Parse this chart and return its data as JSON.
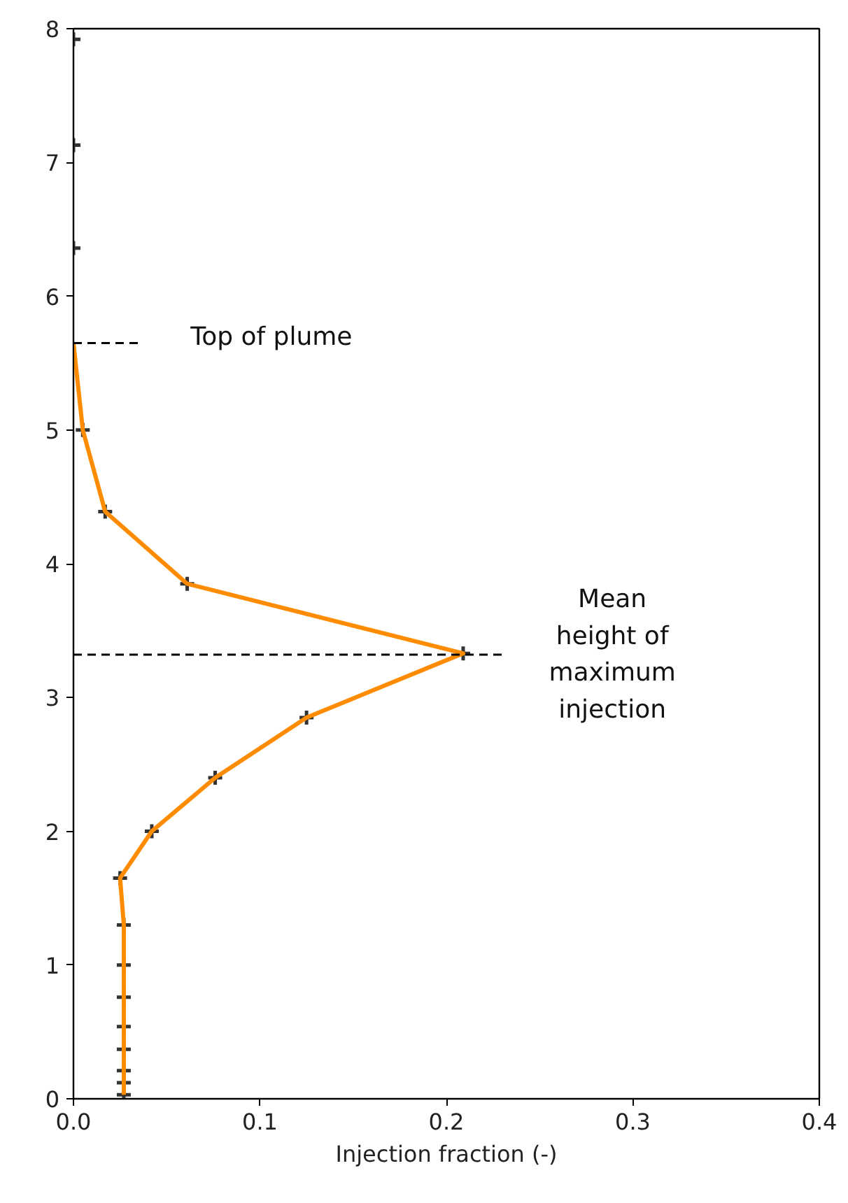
{
  "chart_data": {
    "type": "line",
    "xlabel": "Injection fraction (-)",
    "xlim": [
      0,
      0.4
    ],
    "xticks": [
      {
        "value": 0,
        "label": "0.0"
      },
      0.1,
      0.2,
      0.3,
      0.4
    ],
    "ylim": [
      0,
      8
    ],
    "yticks": [
      0,
      1,
      2,
      3,
      4,
      5,
      6,
      7,
      8
    ],
    "grid": false,
    "series": [
      {
        "color": "#ff8c00",
        "marker": "none",
        "line_style": "solid",
        "x": [
          0.027,
          0.027,
          0.027,
          0.027,
          0.027,
          0.027,
          0.027,
          0.027,
          0.025,
          0.042,
          0.076,
          0.125,
          0.209,
          0.061,
          0.017,
          0.005,
          0
        ],
        "values": [
          0.03,
          0.12,
          0.21,
          0.37,
          0.54,
          0.76,
          1.0,
          1.3,
          1.65,
          2.0,
          2.4,
          2.85,
          3.33,
          3.85,
          4.39,
          5.0,
          5.65
        ]
      },
      {
        "type": "scatter",
        "color": "#333333",
        "marker": "cross",
        "x": [
          0.027,
          0.027,
          0.027,
          0.027,
          0.027,
          0.027,
          0.027,
          0.027,
          0.025,
          0.042,
          0.076,
          0.125,
          0.209,
          0.061,
          0.017,
          0.005,
          0,
          0,
          0
        ],
        "values": [
          0.03,
          0.12,
          0.21,
          0.37,
          0.54,
          0.76,
          1.0,
          1.3,
          1.65,
          2.0,
          2.4,
          2.85,
          3.33,
          3.85,
          4.39,
          5.0,
          6.36,
          7.13,
          7.92
        ]
      },
      {
        "color": "#000000",
        "marker": "none",
        "line_style": "dashed",
        "x": [
          0,
          0.035
        ],
        "values": [
          5.65,
          5.65
        ]
      },
      {
        "color": "#000000",
        "marker": "none",
        "line_style": "dashed",
        "x": [
          0,
          0.23
        ],
        "values": [
          3.32,
          3.32
        ]
      }
    ],
    "annotations": [
      "Top of plume",
      "Mean\nheight of\nmaximum\ninjection"
    ]
  }
}
